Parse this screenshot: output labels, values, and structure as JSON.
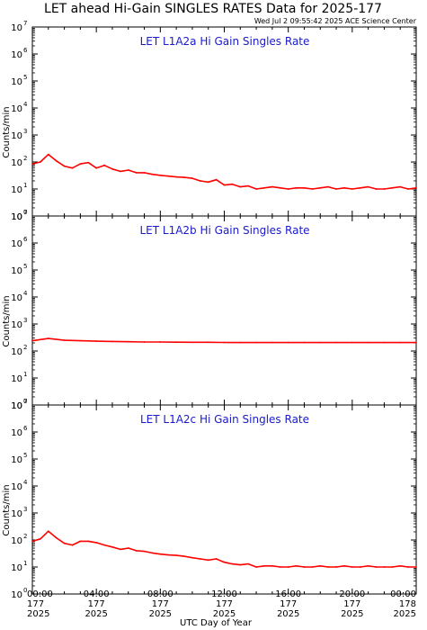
{
  "chart_data": {
    "type": "line",
    "title": "LET ahead Hi-Gain SINGLES RATES Data for 2025-177",
    "timestamp": "Wed Jul  2 09:55:42 2025 ACE Science Center",
    "xlabel": "UTC Day of Year",
    "ylabel": "Counts/min",
    "yscale": "log",
    "ylim": [
      1,
      10000000
    ],
    "xlim": [
      0,
      24
    ],
    "x_ticks": [
      {
        "hour": 0,
        "time": "00:00",
        "doy": "177",
        "year": "2025"
      },
      {
        "hour": 4,
        "time": "04:00",
        "doy": "177",
        "year": "2025"
      },
      {
        "hour": 8,
        "time": "08:00",
        "doy": "177",
        "year": "2025"
      },
      {
        "hour": 12,
        "time": "12:00",
        "doy": "177",
        "year": "2025"
      },
      {
        "hour": 16,
        "time": "16:00",
        "doy": "177",
        "year": "2025"
      },
      {
        "hour": 20,
        "time": "20:00",
        "doy": "177",
        "year": "2025"
      },
      {
        "hour": 24,
        "time": "00:00",
        "doy": "178",
        "year": "2025"
      }
    ],
    "y_ticks": [
      {
        "value": 1,
        "base": "10",
        "exp": "0"
      },
      {
        "value": 10,
        "base": "10",
        "exp": "1"
      },
      {
        "value": 100,
        "base": "10",
        "exp": "2"
      },
      {
        "value": 1000,
        "base": "10",
        "exp": "3"
      },
      {
        "value": 10000,
        "base": "10",
        "exp": "4"
      },
      {
        "value": 100000,
        "base": "10",
        "exp": "5"
      },
      {
        "value": 1000000,
        "base": "10",
        "exp": "6"
      },
      {
        "value": 10000000,
        "base": "10",
        "exp": "7"
      }
    ],
    "line_color": "#ff0000",
    "panels": [
      {
        "name": "LET L1A2a Hi Gain Singles Rate",
        "series": {
          "x": [
            0,
            0.5,
            1,
            1.5,
            2,
            2.5,
            3,
            3.5,
            4,
            4.5,
            5,
            5.5,
            6,
            6.5,
            7,
            7.5,
            8,
            8.5,
            9,
            9.5,
            10,
            10.5,
            11,
            11.5,
            12,
            12.5,
            13,
            13.5,
            14,
            14.5,
            15,
            15.5,
            16,
            16.5,
            17,
            17.5,
            18,
            18.5,
            19,
            19.5,
            20,
            20.5,
            21,
            21.5,
            22,
            22.5,
            23,
            23.5,
            24
          ],
          "y": [
            85,
            100,
            190,
            110,
            70,
            60,
            85,
            95,
            60,
            75,
            55,
            45,
            50,
            40,
            40,
            35,
            32,
            30,
            28,
            27,
            25,
            20,
            18,
            22,
            14,
            15,
            12,
            13,
            10,
            11,
            12,
            11,
            10,
            11,
            11,
            10,
            11,
            12,
            10,
            11,
            10,
            11,
            12,
            10,
            10,
            11,
            12,
            10,
            11
          ]
        }
      },
      {
        "name": "LET L1A2b Hi Gain Singles Rate",
        "series": {
          "x": [
            0,
            1,
            2,
            3,
            4,
            5,
            6,
            7,
            8,
            9,
            10,
            11,
            12,
            13,
            14,
            15,
            16,
            17,
            18,
            19,
            20,
            21,
            22,
            23,
            24
          ],
          "y": [
            240,
            290,
            250,
            240,
            230,
            225,
            220,
            215,
            215,
            212,
            210,
            210,
            208,
            205,
            205,
            205,
            205,
            205,
            205,
            205,
            205,
            205,
            205,
            205,
            205
          ]
        }
      },
      {
        "name": "LET L1A2c Hi Gain Singles Rate",
        "series": {
          "x": [
            0,
            0.5,
            1,
            1.5,
            2,
            2.5,
            3,
            3.5,
            4,
            4.5,
            5,
            5.5,
            6,
            6.5,
            7,
            7.5,
            8,
            8.5,
            9,
            9.5,
            10,
            10.5,
            11,
            11.5,
            12,
            12.5,
            13,
            13.5,
            14,
            14.5,
            15,
            15.5,
            16,
            16.5,
            17,
            17.5,
            18,
            18.5,
            19,
            19.5,
            20,
            20.5,
            21,
            21.5,
            22,
            22.5,
            23,
            23.5,
            24
          ],
          "y": [
            90,
            110,
            210,
            120,
            75,
            65,
            90,
            90,
            80,
            65,
            55,
            45,
            50,
            40,
            38,
            33,
            30,
            28,
            27,
            25,
            22,
            20,
            18,
            20,
            15,
            13,
            12,
            13,
            10,
            11,
            11,
            10,
            10,
            11,
            10,
            10,
            11,
            10,
            10,
            11,
            10,
            10,
            11,
            10,
            10,
            10,
            11,
            10,
            10
          ]
        }
      }
    ]
  }
}
